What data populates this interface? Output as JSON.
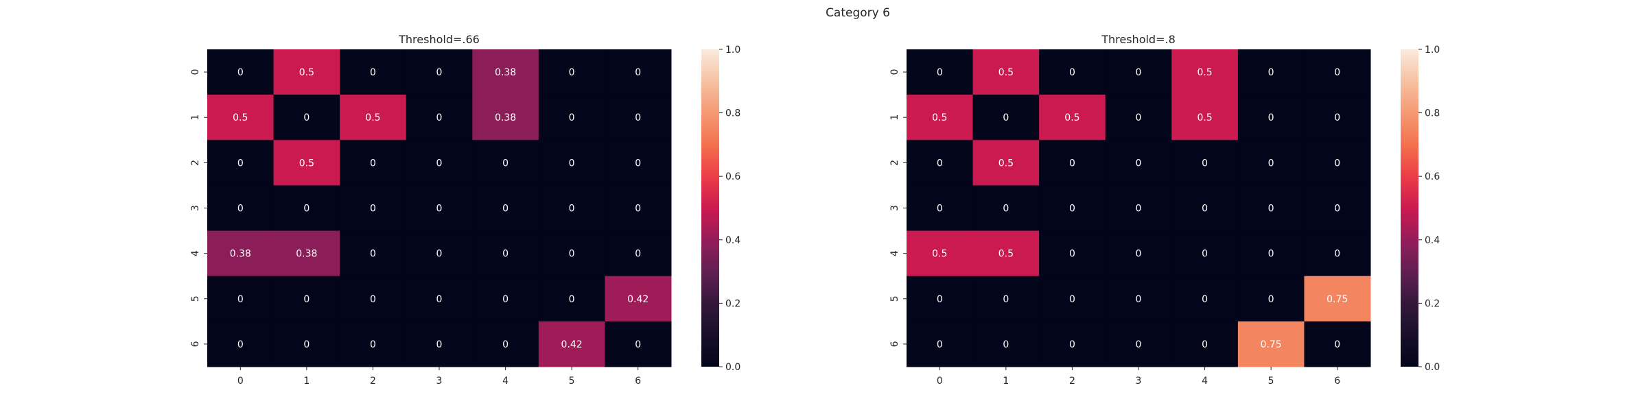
{
  "suptitle": "Category 6",
  "chart_data": [
    {
      "type": "heatmap",
      "title": "Threshold=.66",
      "x_labels": [
        "0",
        "1",
        "2",
        "3",
        "4",
        "5",
        "6"
      ],
      "y_labels": [
        "0",
        "1",
        "2",
        "3",
        "4",
        "5",
        "6"
      ],
      "values": [
        [
          0,
          0.5,
          0,
          0,
          0.38,
          0,
          0
        ],
        [
          0.5,
          0,
          0.5,
          0,
          0.38,
          0,
          0
        ],
        [
          0,
          0.5,
          0,
          0,
          0,
          0,
          0
        ],
        [
          0,
          0,
          0,
          0,
          0,
          0,
          0
        ],
        [
          0.38,
          0.38,
          0,
          0,
          0,
          0,
          0
        ],
        [
          0,
          0,
          0,
          0,
          0,
          0,
          0.42
        ],
        [
          0,
          0,
          0,
          0,
          0,
          0.42,
          0
        ]
      ],
      "cell_labels": [
        [
          "0",
          "0.5",
          "0",
          "0",
          "0.38",
          "0",
          "0"
        ],
        [
          "0.5",
          "0",
          "0.5",
          "0",
          "0.38",
          "0",
          "0"
        ],
        [
          "0",
          "0.5",
          "0",
          "0",
          "0",
          "0",
          "0"
        ],
        [
          "0",
          "0",
          "0",
          "0",
          "0",
          "0",
          "0"
        ],
        [
          "0.38",
          "0.38",
          "0",
          "0",
          "0",
          "0",
          "0"
        ],
        [
          "0",
          "0",
          "0",
          "0",
          "0",
          "0",
          "0.42"
        ],
        [
          "0",
          "0",
          "0",
          "0",
          "0",
          "0.42",
          "0"
        ]
      ],
      "colorbar": {
        "min": 0,
        "max": 1,
        "ticks": [
          "0.0",
          "0.2",
          "0.4",
          "0.6",
          "0.8",
          "1.0"
        ]
      },
      "colormap": "rocket"
    },
    {
      "type": "heatmap",
      "title": "Threshold=.8",
      "x_labels": [
        "0",
        "1",
        "2",
        "3",
        "4",
        "5",
        "6"
      ],
      "y_labels": [
        "0",
        "1",
        "2",
        "3",
        "4",
        "5",
        "6"
      ],
      "values": [
        [
          0,
          0.5,
          0,
          0,
          0.5,
          0,
          0
        ],
        [
          0.5,
          0,
          0.5,
          0,
          0.5,
          0,
          0
        ],
        [
          0,
          0.5,
          0,
          0,
          0,
          0,
          0
        ],
        [
          0,
          0,
          0,
          0,
          0,
          0,
          0
        ],
        [
          0.5,
          0.5,
          0,
          0,
          0,
          0,
          0
        ],
        [
          0,
          0,
          0,
          0,
          0,
          0,
          0.75
        ],
        [
          0,
          0,
          0,
          0,
          0,
          0.75,
          0
        ]
      ],
      "cell_labels": [
        [
          "0",
          "0.5",
          "0",
          "0",
          "0.5",
          "0",
          "0"
        ],
        [
          "0.5",
          "0",
          "0.5",
          "0",
          "0.5",
          "0",
          "0"
        ],
        [
          "0",
          "0.5",
          "0",
          "0",
          "0",
          "0",
          "0"
        ],
        [
          "0",
          "0",
          "0",
          "0",
          "0",
          "0",
          "0"
        ],
        [
          "0.5",
          "0.5",
          "0",
          "0",
          "0",
          "0",
          "0"
        ],
        [
          "0",
          "0",
          "0",
          "0",
          "0",
          "0",
          "0.75"
        ],
        [
          "0",
          "0",
          "0",
          "0",
          "0",
          "0.75",
          "0"
        ]
      ],
      "colorbar": {
        "min": 0,
        "max": 1,
        "ticks": [
          "0.0",
          "0.2",
          "0.4",
          "0.6",
          "0.8",
          "1.0"
        ]
      },
      "colormap": "rocket"
    }
  ]
}
